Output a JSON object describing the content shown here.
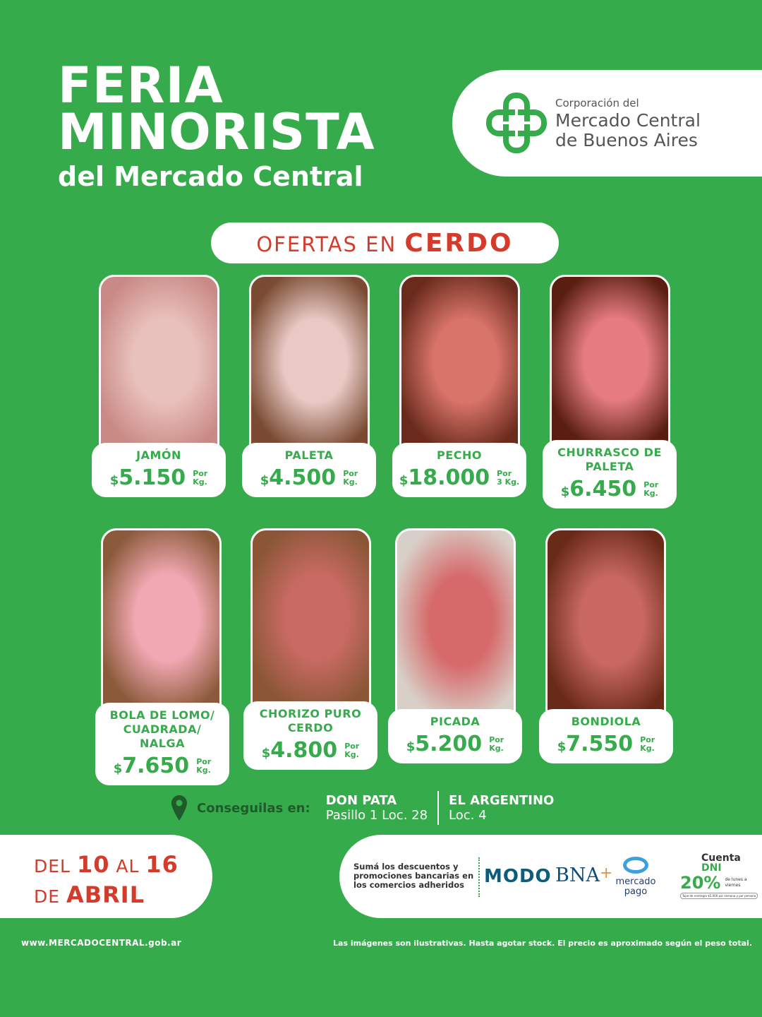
{
  "header": {
    "title_line1": "FERIA",
    "title_line2": "MINORISTA",
    "subtitle": "del Mercado Central"
  },
  "logo": {
    "line1": "Corporación del",
    "line2": "Mercado Central",
    "line3": "de Buenos Aires"
  },
  "banner": {
    "prefix": "OFERTAS EN",
    "highlight": "CERDO"
  },
  "products": [
    {
      "name": "JAMÓN",
      "price": "5.150",
      "unit1": "Por",
      "unit2": "Kg."
    },
    {
      "name": "PALETA",
      "price": "4.500",
      "unit1": "Por",
      "unit2": "Kg."
    },
    {
      "name": "PECHO",
      "price": "18.000",
      "unit1": "Por",
      "unit2": "3 Kg."
    },
    {
      "name": "CHURRASCO DE PALETA",
      "price": "6.450",
      "unit1": "Por",
      "unit2": "Kg."
    },
    {
      "name": "BOLA DE LOMO/ CUADRADA/ NALGA",
      "price": "7.650",
      "unit1": "Por",
      "unit2": "Kg."
    },
    {
      "name": "CHORIZO PURO CERDO",
      "price": "4.800",
      "unit1": "Por",
      "unit2": "Kg."
    },
    {
      "name": "PICADA",
      "price": "5.200",
      "unit1": "Por",
      "unit2": "Kg."
    },
    {
      "name": "BONDIOLA",
      "price": "7.550",
      "unit1": "Por",
      "unit2": "Kg."
    }
  ],
  "currency": "$",
  "location": {
    "label": "Conseguilas en:",
    "stores": [
      {
        "name": "DON PATA",
        "loc": "Pasillo 1  Loc. 28"
      },
      {
        "name": "EL ARGENTINO",
        "loc": "Loc. 4"
      }
    ]
  },
  "dates": {
    "del": "DEL",
    "from": "10",
    "al": "AL",
    "to": "16",
    "de": "DE",
    "month": "ABRIL"
  },
  "banks": {
    "text": "Sumá los descuentos y promociones bancarias en los comercios adheridos",
    "modo": "MODO",
    "bna": "BNA",
    "bna_plus": "+",
    "mp1": "mercado",
    "mp2": "pago",
    "cuenta": "Cuenta",
    "dni": "DNI",
    "pct": "20%",
    "ahorro": "ahorro",
    "days": "de lunes a viernes",
    "tope": "Tope de reintegro $5.000 por semana y por persona"
  },
  "footer": {
    "url": "www.MERCADOCENTRAL.gob.ar",
    "disclaimer": "Las imágenes son ilustrativas. Hasta agotar stock. El precio es aproximado según el peso total."
  },
  "colors": {
    "green": "#36ab4b",
    "red": "#d43b2b",
    "modo": "#0d5c7a"
  }
}
